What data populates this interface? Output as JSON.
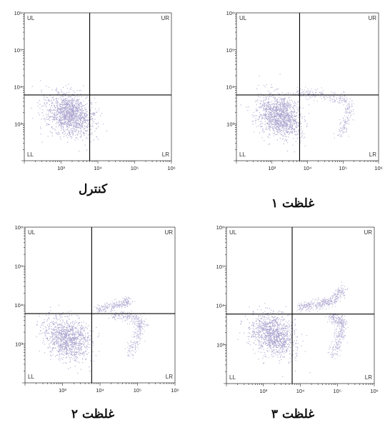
{
  "colors": {
    "dots": "#7f72b4",
    "dense": "#6a5ba7",
    "axis": "#000000",
    "gate": "#000000"
  },
  "chart_data": [
    {
      "type": "scatter",
      "caption": "کنترل",
      "x_ticks": [
        "10³",
        "10⁴",
        "10⁵",
        "10⁶"
      ],
      "y_ticks": [
        "10⁶",
        "10⁵",
        "10⁴",
        "10³"
      ],
      "xlim": [
        100,
        1000000
      ],
      "ylim": [
        100,
        1000000
      ],
      "scale": "log",
      "gate": {
        "x": 6000,
        "y": 6000
      },
      "quadrants": [
        "UL",
        "UR",
        "LL",
        "LR"
      ],
      "populations": [
        {
          "kind": "blob",
          "cx": 1700,
          "cy": 1800,
          "sx": 0.34,
          "sy": 0.26,
          "rot": -35,
          "n": 1400
        }
      ]
    },
    {
      "type": "scatter",
      "caption": "غلظت ۱",
      "x_ticks": [
        "10³",
        "10⁴",
        "10⁵",
        "10⁶"
      ],
      "y_ticks": [
        "10⁶",
        "10⁵",
        "10⁴",
        "10³"
      ],
      "xlim": [
        100,
        1000000
      ],
      "ylim": [
        100,
        1000000
      ],
      "scale": "log",
      "gate": {
        "x": 6000,
        "y": 6000
      },
      "quadrants": [
        "UL",
        "UR",
        "LL",
        "LR"
      ],
      "populations": [
        {
          "kind": "blob",
          "cx": 1600,
          "cy": 1700,
          "sx": 0.32,
          "sy": 0.26,
          "rot": -35,
          "n": 1300
        },
        {
          "kind": "curve",
          "pts": [
            [
              4000,
              7000
            ],
            [
              15000,
              6500
            ],
            [
              60000,
              5500
            ],
            [
              150000,
              4000
            ],
            [
              130000,
              1400
            ],
            [
              80000,
              500
            ]
          ],
          "spread": 0.07,
          "n": 350
        }
      ]
    },
    {
      "type": "scatter",
      "caption": "غلظت ۲",
      "x_ticks": [
        "10³",
        "10⁴",
        "10⁵",
        "10⁶"
      ],
      "y_ticks": [
        "10⁶",
        "10⁵",
        "10⁴",
        "10³"
      ],
      "xlim": [
        100,
        1000000
      ],
      "ylim": [
        100,
        1000000
      ],
      "scale": "log",
      "gate": {
        "x": 6000,
        "y": 6000
      },
      "quadrants": [
        "UL",
        "UR",
        "LL",
        "LR"
      ],
      "populations": [
        {
          "kind": "blob",
          "cx": 1300,
          "cy": 1400,
          "sx": 0.32,
          "sy": 0.25,
          "rot": -35,
          "n": 1100
        },
        {
          "kind": "curve",
          "pts": [
            [
              8000,
              7500
            ],
            [
              20000,
              9500
            ],
            [
              45000,
              11000
            ],
            [
              60000,
              14000
            ]
          ],
          "spread": 0.06,
          "n": 250
        },
        {
          "kind": "curve",
          "pts": [
            [
              20000,
              5500
            ],
            [
              70000,
              5200
            ],
            [
              130000,
              3500
            ],
            [
              100000,
              1500
            ],
            [
              60000,
              550
            ]
          ],
          "spread": 0.07,
          "n": 350
        }
      ]
    },
    {
      "type": "scatter",
      "caption": "غلظت ۳",
      "x_ticks": [
        "10³",
        "10⁴",
        "10⁵",
        "10⁶"
      ],
      "y_ticks": [
        "10⁶",
        "10⁵",
        "10⁴",
        "10³"
      ],
      "xlim": [
        100,
        1000000
      ],
      "ylim": [
        100,
        1000000
      ],
      "scale": "log",
      "gate": {
        "x": 6000,
        "y": 6000
      },
      "quadrants": [
        "UL",
        "UR",
        "LL",
        "LR"
      ],
      "populations": [
        {
          "kind": "blob",
          "cx": 1800,
          "cy": 1800,
          "sx": 0.32,
          "sy": 0.24,
          "rot": -35,
          "n": 1100
        },
        {
          "kind": "curve",
          "pts": [
            [
              9000,
              9000
            ],
            [
              30000,
              10500
            ],
            [
              80000,
              14000
            ],
            [
              140000,
              28000
            ]
          ],
          "spread": 0.07,
          "n": 400
        },
        {
          "kind": "curve",
          "pts": [
            [
              60000,
              5000
            ],
            [
              130000,
              4200
            ],
            [
              120000,
              1700
            ],
            [
              70000,
              500
            ]
          ],
          "spread": 0.07,
          "n": 350
        }
      ]
    }
  ]
}
